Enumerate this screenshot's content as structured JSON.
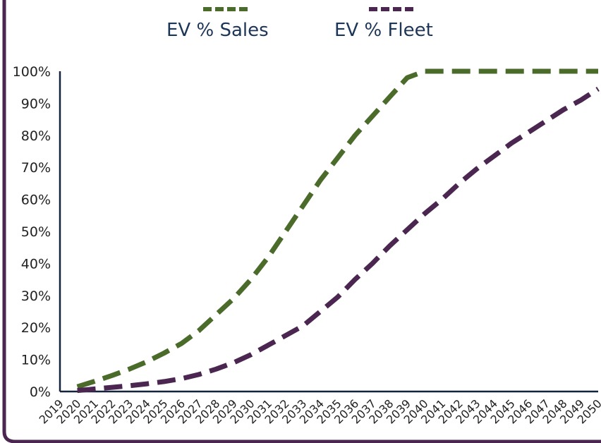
{
  "colors": {
    "sales": "#4a6b2a",
    "fleet": "#4b2650",
    "axis": "#14243b",
    "border": "#4b2650",
    "label": "#1d3557"
  },
  "chart_data": {
    "type": "line",
    "title": "",
    "xlabel": "",
    "ylabel": "",
    "categories": [
      "2019",
      "2020",
      "2021",
      "2022",
      "2023",
      "2024",
      "2025",
      "2026",
      "2027",
      "2028",
      "2029",
      "2030",
      "2031",
      "2032",
      "2033",
      "2034",
      "2035",
      "2036",
      "2037",
      "2038",
      "2039",
      "2040",
      "2041",
      "2042",
      "2043",
      "2044",
      "2045",
      "2046",
      "2047",
      "2048",
      "2049",
      "2050"
    ],
    "yticks": [
      "0%",
      "10%",
      "20%",
      "30%",
      "40%",
      "50%",
      "60%",
      "70%",
      "80%",
      "90%",
      "100%"
    ],
    "ylim": [
      0,
      100
    ],
    "grid": false,
    "legend_position": "top",
    "series": [
      {
        "name": "EV % Sales",
        "style": "dashed",
        "values": [
          null,
          1.5,
          3.2,
          5,
          7,
          9.3,
          12,
          15,
          19,
          24,
          29,
          35,
          42,
          50,
          58,
          66,
          73,
          80,
          86,
          92,
          98,
          100,
          100,
          100,
          100,
          100,
          100,
          100,
          100,
          100,
          100,
          100
        ]
      },
      {
        "name": "EV % Fleet",
        "style": "dashed",
        "values": [
          null,
          0.3,
          0.8,
          1.3,
          1.8,
          2.4,
          3.1,
          4,
          5.3,
          7,
          9,
          11.5,
          14.5,
          17.5,
          20.5,
          25,
          29.5,
          35,
          40,
          45.5,
          50.5,
          55.5,
          60,
          65,
          69.5,
          73.5,
          77.5,
          81,
          84.5,
          88,
          91,
          94.5
        ]
      }
    ]
  }
}
